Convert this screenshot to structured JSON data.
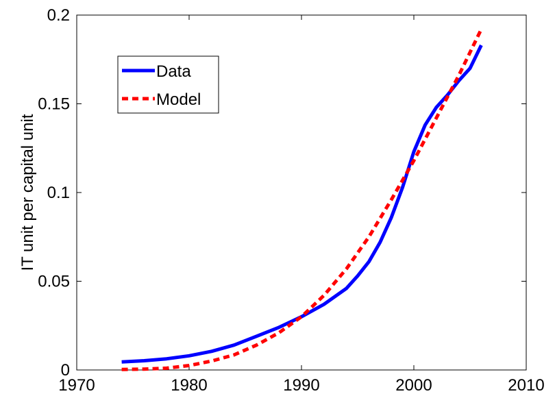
{
  "chart_data": {
    "type": "line",
    "title": "",
    "xlabel": "",
    "ylabel": "IT unit per capital unit",
    "xlim": [
      1970,
      2010
    ],
    "ylim": [
      0,
      0.2
    ],
    "xticks": [
      1970,
      1980,
      1990,
      2000,
      2010
    ],
    "xtick_labels": [
      "1970",
      "1980",
      "1990",
      "2000",
      "2010"
    ],
    "yticks": [
      0,
      0.05,
      0.1,
      0.15,
      0.2
    ],
    "ytick_labels": [
      "0",
      "0.05",
      "0.1",
      "0.15",
      "0.2"
    ],
    "grid": false,
    "legend": {
      "position": "top-left",
      "entries": [
        "Data",
        "Model"
      ]
    },
    "series": [
      {
        "name": "Data",
        "color": "#0000ff",
        "style": "solid",
        "x": [
          1974,
          1976,
          1978,
          1980,
          1982,
          1984,
          1986,
          1988,
          1990,
          1992,
          1994,
          1995,
          1996,
          1997,
          1998,
          1999,
          2000,
          2001,
          2002,
          2003,
          2004,
          2005,
          2006
        ],
        "y": [
          0.0045,
          0.0052,
          0.0063,
          0.008,
          0.0105,
          0.014,
          0.019,
          0.024,
          0.03,
          0.037,
          0.046,
          0.053,
          0.061,
          0.072,
          0.086,
          0.103,
          0.123,
          0.138,
          0.148,
          0.155,
          0.163,
          0.17,
          0.183
        ]
      },
      {
        "name": "Model",
        "color": "#ff0000",
        "style": "dashed",
        "x": [
          1974,
          1976,
          1978,
          1980,
          1982,
          1984,
          1986,
          1988,
          1990,
          1992,
          1994,
          1996,
          1998,
          2000,
          2002,
          2004,
          2006
        ],
        "y": [
          0.0003,
          0.0005,
          0.001,
          0.0025,
          0.005,
          0.0085,
          0.014,
          0.021,
          0.03,
          0.042,
          0.057,
          0.075,
          0.096,
          0.118,
          0.142,
          0.166,
          0.192
        ]
      }
    ]
  }
}
